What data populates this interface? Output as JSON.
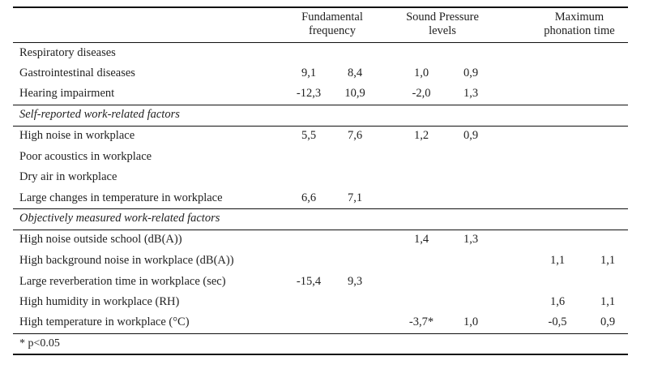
{
  "table": {
    "columns": [
      {
        "label_line1": "Fundamental",
        "label_line2": "frequency"
      },
      {
        "label_line1": "Sound Pressure",
        "label_line2": "levels"
      },
      {
        "label_line1": "Maximum",
        "label_line2": "phonation time"
      }
    ],
    "rows": [
      {
        "label": "Respiratory diseases",
        "italic": false,
        "values": [
          "",
          "",
          "",
          "",
          "",
          ""
        ]
      },
      {
        "label": "Gastrointestinal diseases",
        "italic": false,
        "values": [
          "9,1",
          "8,4",
          "1,0",
          "0,9",
          "",
          ""
        ]
      },
      {
        "label": "Hearing impairment",
        "italic": false,
        "values": [
          "-12,3",
          "10,9",
          "-2,0",
          "1,3",
          "",
          ""
        ]
      },
      {
        "label": "Self-reported work-related factors",
        "italic": true,
        "values": [
          "",
          "",
          "",
          "",
          "",
          ""
        ]
      },
      {
        "label": "High noise in workplace",
        "italic": false,
        "values": [
          "5,5",
          "7,6",
          "1,2",
          "0,9",
          "",
          ""
        ]
      },
      {
        "label": "Poor acoustics in workplace",
        "italic": false,
        "values": [
          "",
          "",
          "",
          "",
          "",
          ""
        ]
      },
      {
        "label": "Dry air in workplace",
        "italic": false,
        "values": [
          "",
          "",
          "",
          "",
          "",
          ""
        ]
      },
      {
        "label": "Large changes in temperature in workplace",
        "italic": false,
        "values": [
          "6,6",
          "7,1",
          "",
          "",
          "",
          ""
        ]
      },
      {
        "label": "Objectively measured work-related factors",
        "italic": true,
        "values": [
          "",
          "",
          "",
          "",
          "",
          ""
        ]
      },
      {
        "label": "High noise outside school (dB(A))",
        "italic": false,
        "values": [
          "",
          "",
          "1,4",
          "1,3",
          "",
          ""
        ]
      },
      {
        "label": "High background noise in workplace (dB(A))",
        "italic": false,
        "values": [
          "",
          "",
          "",
          "",
          "1,1",
          "1,1"
        ]
      },
      {
        "label": "Large reverberation time in workplace (sec)",
        "italic": false,
        "values": [
          "-15,4",
          "9,3",
          "",
          "",
          "",
          ""
        ]
      },
      {
        "label": "High humidity in workplace (RH)",
        "italic": false,
        "values": [
          "",
          "",
          "",
          "",
          "1,6",
          "1,1"
        ]
      },
      {
        "label": "High temperature in workplace (°C)",
        "italic": false,
        "values": [
          "",
          "",
          "-3,7*",
          "1,0",
          "-0,5",
          "0,9"
        ]
      }
    ],
    "footnote": "* p<0.05"
  }
}
